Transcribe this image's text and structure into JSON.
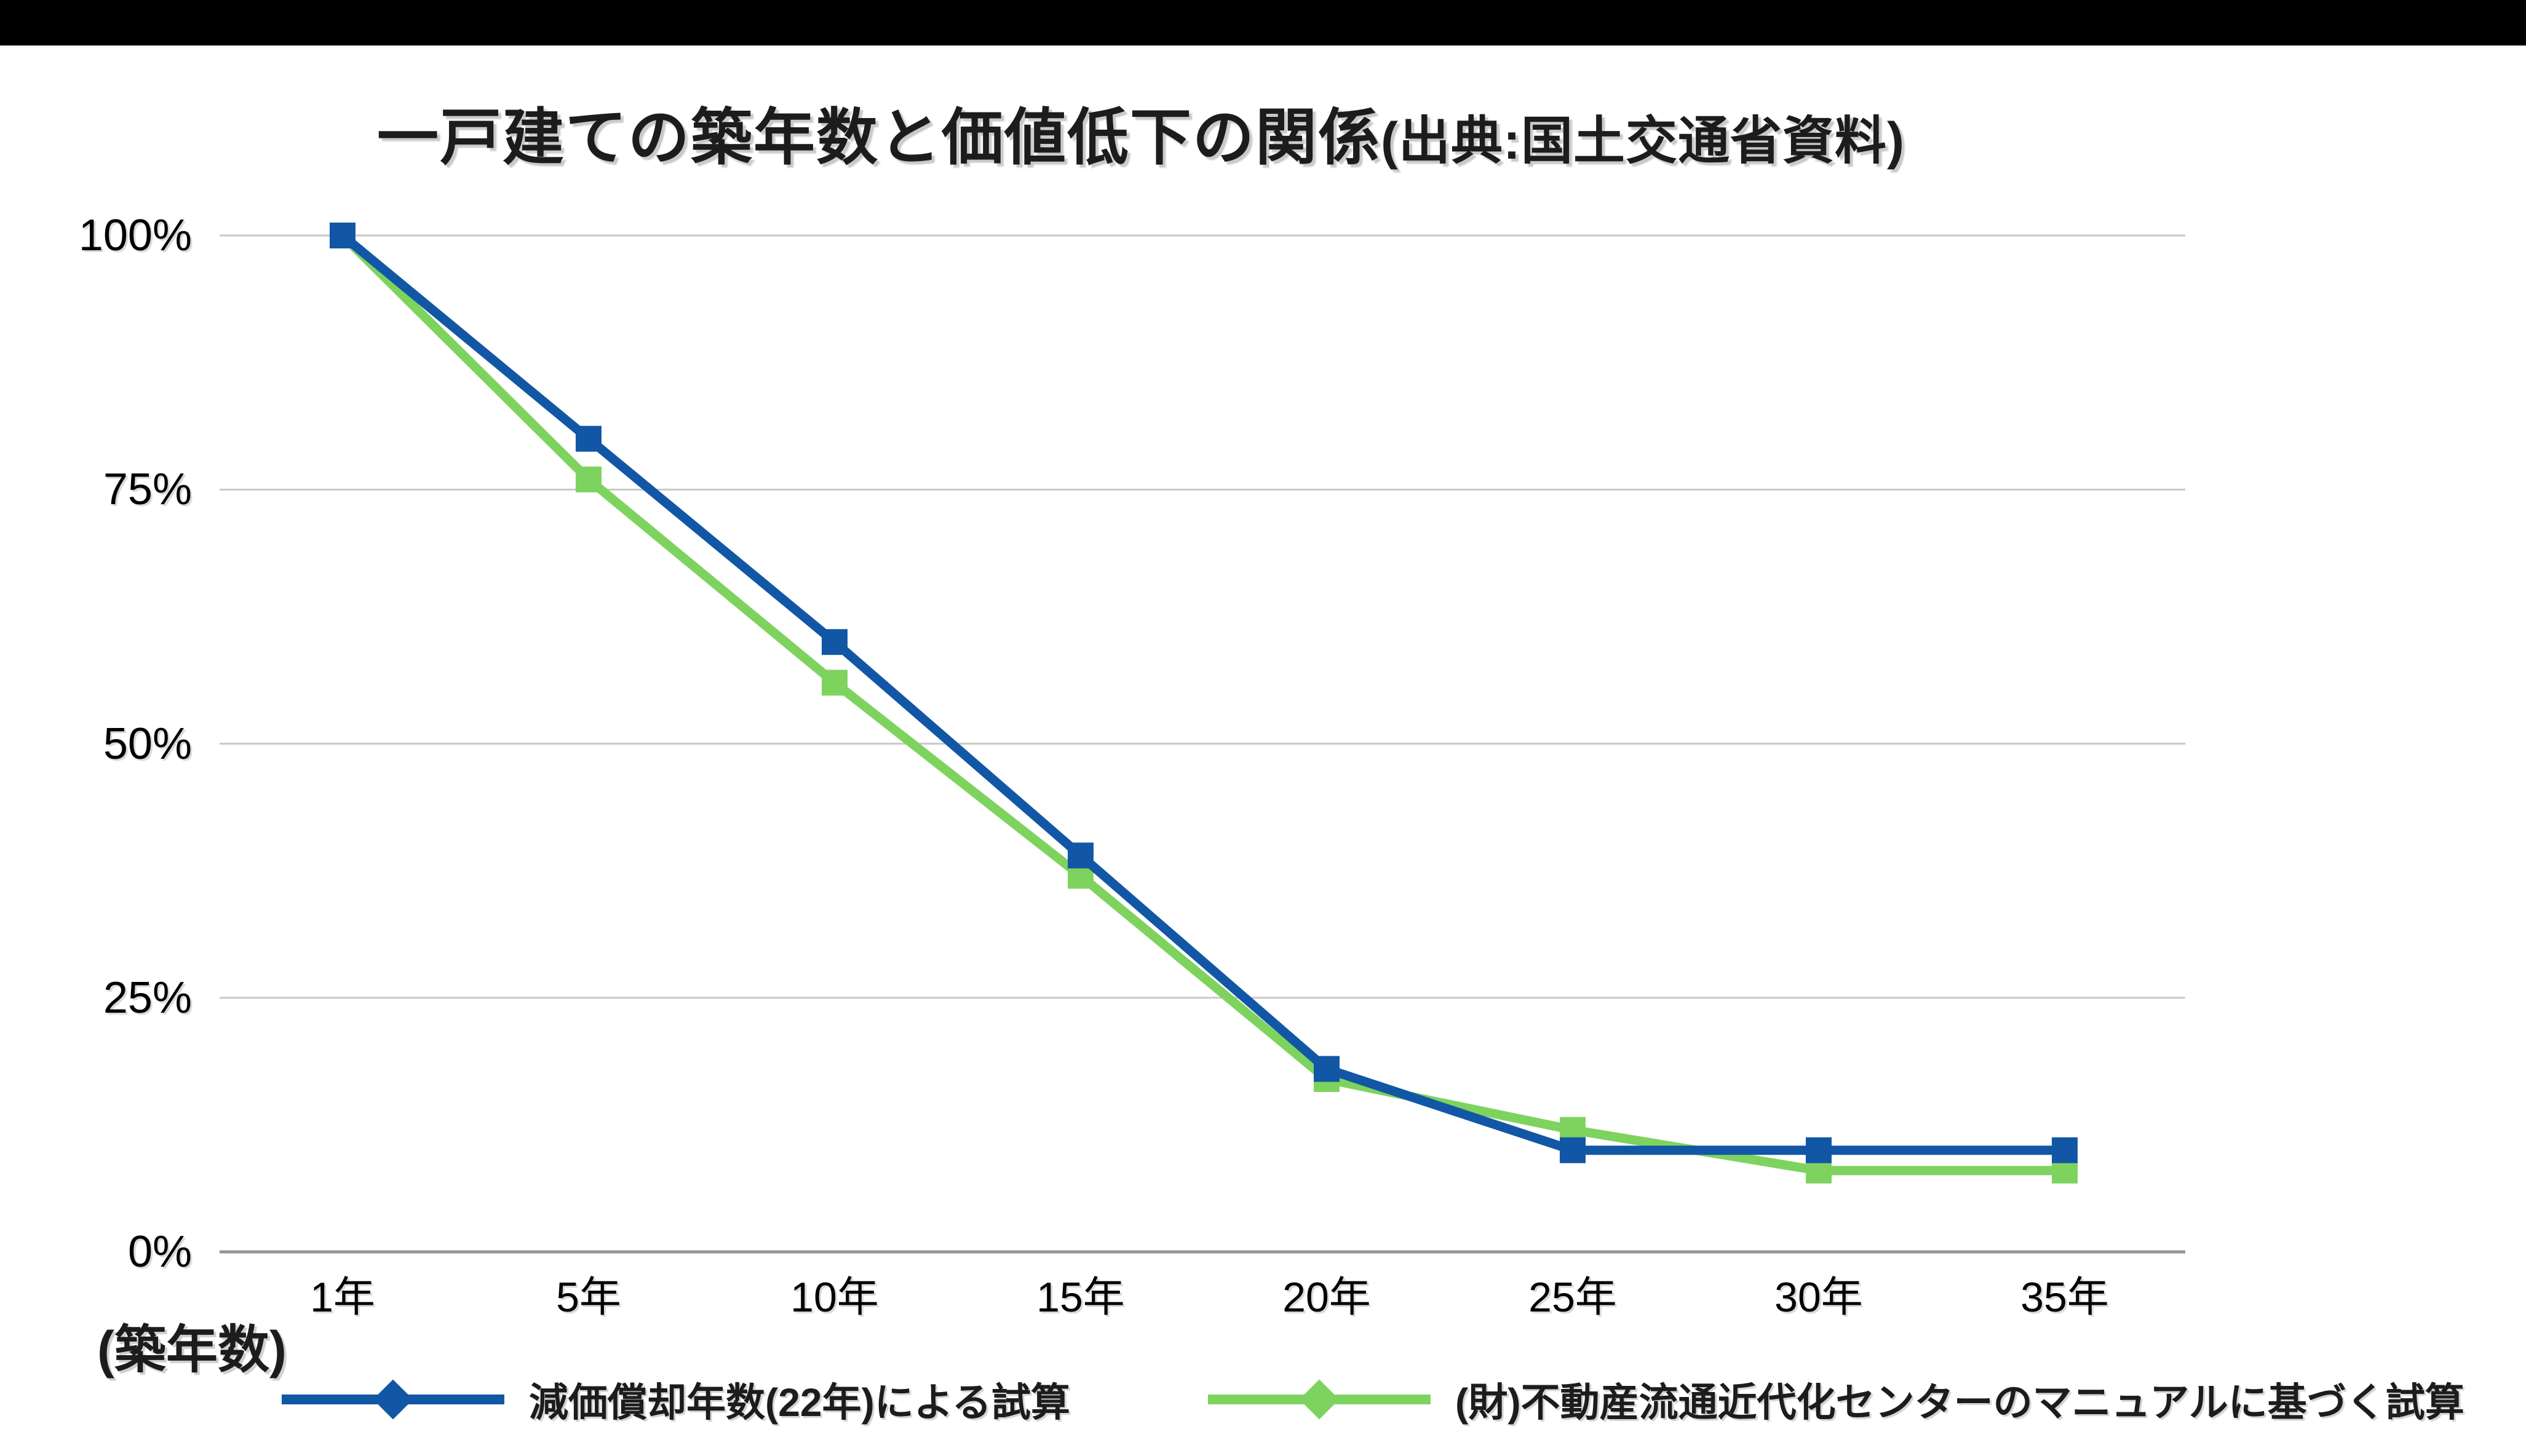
{
  "page": {
    "background_color": "#ffffff",
    "top_bar_color": "#000000"
  },
  "title": {
    "main": "一戸建ての築年数と価値低下の関係",
    "source": "(出典:国土交通省資料)"
  },
  "axis": {
    "x_unit_label": "(築年数)"
  },
  "chart_data": {
    "type": "line",
    "title": "一戸建ての築年数と価値低下の関係(出典:国土交通省資料)",
    "categories": [
      "1年",
      "5年",
      "10年",
      "15年",
      "20年",
      "25年",
      "30年",
      "35年"
    ],
    "series": [
      {
        "name": "減価償却年数(22年)による試算",
        "color": "#1257a5",
        "marker": "square",
        "values": [
          100,
          80,
          60,
          39,
          18,
          10,
          10,
          10
        ]
      },
      {
        "name": "(財)不動産流通近代化センターのマニュアルに基づく試算",
        "color": "#7ed35f",
        "marker": "square",
        "values": [
          100,
          76,
          56,
          37,
          17,
          12,
          8,
          8
        ]
      }
    ],
    "y_ticks": [
      {
        "label": "100%",
        "value": 100
      },
      {
        "label": "75%",
        "value": 75
      },
      {
        "label": "50%",
        "value": 50
      },
      {
        "label": "25%",
        "value": 25
      },
      {
        "label": "0%",
        "value": 0
      }
    ],
    "ylim": [
      0,
      100
    ],
    "xlabel": "(築年数)",
    "ylabel": "",
    "grid": true,
    "gridline_color": "#c9c9c9",
    "axis_line_color": "#949494",
    "legend_position": "bottom"
  }
}
